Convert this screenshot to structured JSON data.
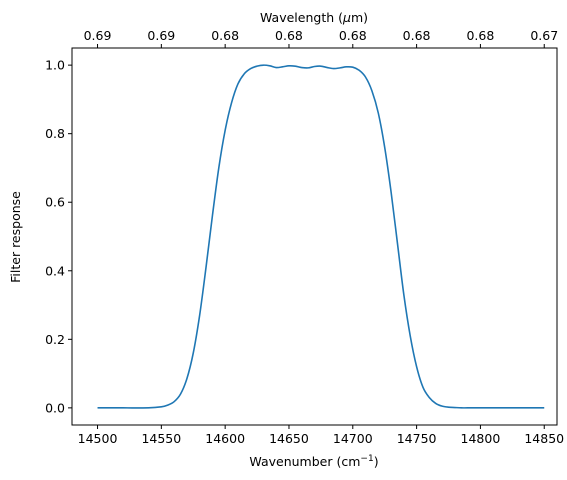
{
  "chart_data": {
    "type": "line",
    "xlabel_main": "Wavenumber (cm",
    "xlabel_sup": "−1",
    "xlabel_close": ")",
    "ylabel": "Filter response",
    "top_xlabel_main": "Wavelength (",
    "top_xlabel_mu": "μ",
    "top_xlabel_end": "m)",
    "xlim": [
      14480,
      14860
    ],
    "ylim": [
      -0.05,
      1.05
    ],
    "x_ticks": [
      14500,
      14550,
      14600,
      14650,
      14700,
      14750,
      14800,
      14850
    ],
    "x_tick_labels": [
      "14500",
      "14550",
      "14600",
      "14650",
      "14700",
      "14750",
      "14800",
      "14850"
    ],
    "y_ticks": [
      0.0,
      0.2,
      0.4,
      0.6,
      0.8,
      1.0
    ],
    "y_tick_labels": [
      "0.0",
      "0.2",
      "0.4",
      "0.6",
      "0.8",
      "1.0"
    ],
    "top_ticks_at_wavenumber": [
      14500,
      14550,
      14600,
      14650,
      14700,
      14750,
      14800,
      14850
    ],
    "top_tick_labels": [
      "0.69",
      "0.69",
      "0.68",
      "0.68",
      "0.68",
      "0.68",
      "0.68",
      "0.67"
    ],
    "grid": false,
    "line_color": "#1f77b4",
    "series": [
      {
        "x": [
          14500,
          14520,
          14540,
          14550,
          14555,
          14560,
          14565,
          14570,
          14575,
          14580,
          14585,
          14590,
          14595,
          14600,
          14605,
          14610,
          14615,
          14620,
          14625,
          14630,
          14635,
          14640,
          14645,
          14650,
          14655,
          14660,
          14665,
          14670,
          14675,
          14680,
          14685,
          14690,
          14695,
          14700,
          14705,
          14710,
          14715,
          14720,
          14725,
          14730,
          14735,
          14740,
          14745,
          14750,
          14755,
          14760,
          14765,
          14770,
          14775,
          14780,
          14785,
          14790,
          14800,
          14820,
          14850
        ],
        "y": [
          0.0,
          0.0,
          0.0,
          0.003,
          0.008,
          0.018,
          0.04,
          0.085,
          0.16,
          0.27,
          0.41,
          0.56,
          0.7,
          0.81,
          0.89,
          0.945,
          0.975,
          0.99,
          0.997,
          1.0,
          0.998,
          0.993,
          0.995,
          0.998,
          0.997,
          0.993,
          0.992,
          0.996,
          0.997,
          0.993,
          0.99,
          0.992,
          0.995,
          0.994,
          0.985,
          0.965,
          0.925,
          0.86,
          0.76,
          0.63,
          0.48,
          0.33,
          0.21,
          0.12,
          0.06,
          0.03,
          0.013,
          0.005,
          0.002,
          0.001,
          0.0,
          0.0,
          0.0,
          0.0,
          0.0
        ]
      }
    ]
  }
}
